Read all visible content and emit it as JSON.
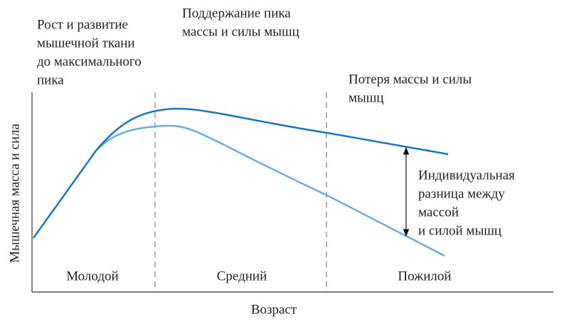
{
  "axes": {
    "x_label": "Возраст",
    "y_label": "Мышечная масса и сила"
  },
  "stages": [
    {
      "label": "Молодой",
      "description": [
        "Рост и развитие",
        "мышечной ткани",
        "до максимального",
        "пика"
      ]
    },
    {
      "label": "Средний",
      "description": [
        "Поддержание пика",
        "массы и силы мышц"
      ]
    },
    {
      "label": "Пожилой",
      "description": [
        "Потеря массы и силы",
        "мышц"
      ]
    }
  ],
  "annotation": [
    "Индивидуальная",
    "разница между",
    "массой",
    "и силой мышц"
  ]
}
